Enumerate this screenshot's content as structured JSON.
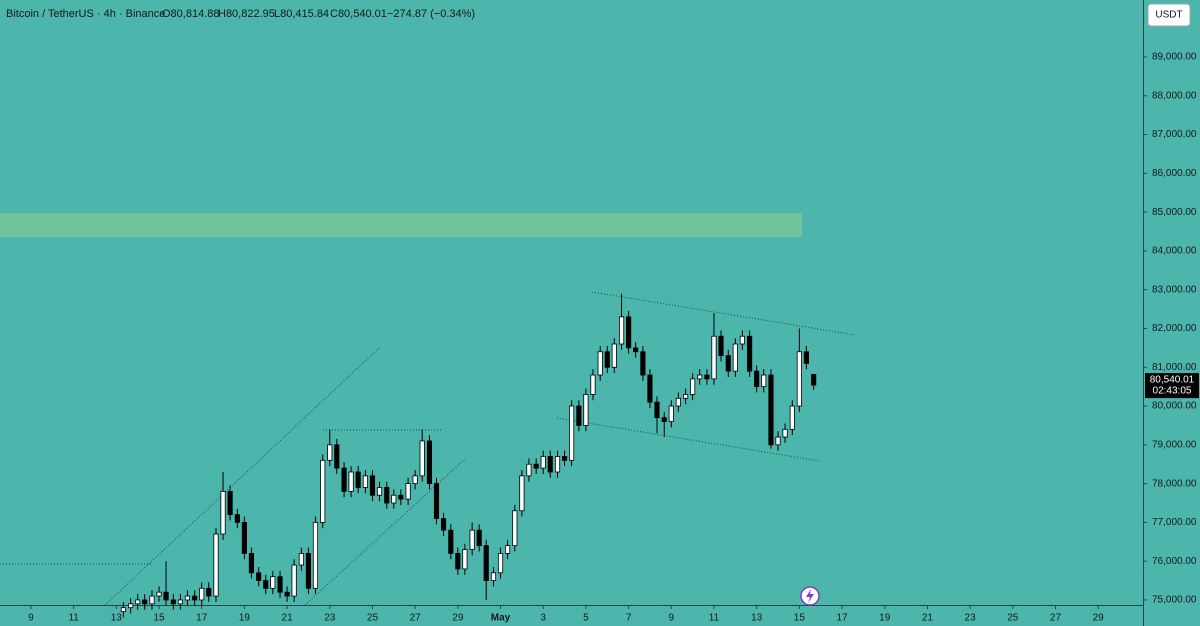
{
  "chart_data": {
    "type": "candlestick",
    "title": "Bitcoin / TetherUS · 4h · Binance",
    "ohlc_labels": [
      "O80,814.88",
      "H80,822.95",
      "L80,415.84",
      "C80,540.01"
    ],
    "change": "−274.87 (−0.34%)",
    "currency": "USDT",
    "price_label": "80,540.01",
    "countdown": "02:43:05",
    "x": [
      13.33,
      13.67,
      14,
      14.33,
      14.67,
      15,
      15.33,
      15.67,
      16,
      16.33,
      16.67,
      17,
      17.33,
      17.67,
      18,
      18.33,
      18.67,
      19,
      19.33,
      19.67,
      20,
      20.33,
      20.67,
      21,
      21.33,
      21.67,
      22,
      22.33,
      22.67,
      23,
      23.33,
      23.67,
      24,
      24.33,
      24.67,
      25,
      25.33,
      25.67,
      26,
      26.33,
      26.67,
      27,
      27.33,
      27.67,
      28,
      28.33,
      28.67,
      29,
      29.33,
      29.67,
      30,
      30.33,
      30.67,
      31,
      31.33,
      31.67,
      32,
      32.33,
      32.67,
      33,
      33.33,
      33.67,
      34,
      34.33,
      34.67,
      35,
      35.33,
      35.67,
      36,
      36.33,
      36.67,
      37,
      37.33,
      37.67,
      38,
      38.33,
      38.67,
      39,
      39.33,
      39.67,
      40,
      40.33,
      40.67,
      41,
      41.33,
      41.67,
      42,
      42.33,
      42.67,
      43,
      43.33,
      43.67,
      44,
      44.33,
      44.67,
      45,
      45.33,
      45.67
    ],
    "open": [
      74700,
      74800,
      74900,
      75000,
      74900,
      75100,
      75200,
      75000,
      74900,
      75000,
      75100,
      75000,
      75300,
      75100,
      76700,
      77800,
      77200,
      77000,
      76200,
      75700,
      75500,
      75300,
      75600,
      75200,
      75100,
      75900,
      76200,
      75300,
      77000,
      78600,
      79000,
      78400,
      77800,
      78300,
      77900,
      78200,
      77700,
      77900,
      77500,
      77700,
      77600,
      78000,
      78200,
      79100,
      78000,
      77100,
      76800,
      76200,
      75800,
      76300,
      76800,
      76400,
      75500,
      75700,
      76200,
      76400,
      77300,
      78200,
      78500,
      78400,
      78700,
      78300,
      78700,
      78600,
      80000,
      79500,
      80300,
      80800,
      81400,
      81000,
      81600,
      82300,
      81500,
      81400,
      80800,
      80100,
      79700,
      79600,
      80000,
      80200,
      80300,
      80700,
      80800,
      80700,
      81800,
      81300,
      80900,
      81600,
      81800,
      80900,
      80500,
      80800,
      79000,
      79200,
      79400,
      80000,
      81400,
      80814.88
    ],
    "high": [
      74950,
      75050,
      75150,
      75150,
      75250,
      75350,
      76000,
      75150,
      75150,
      75250,
      75250,
      75450,
      75450,
      76850,
      78300,
      77950,
      77350,
      77150,
      76350,
      75850,
      75650,
      75750,
      75750,
      75350,
      76050,
      76350,
      76350,
      77150,
      78750,
      79400,
      79150,
      78550,
      78450,
      78450,
      78350,
      78350,
      78050,
      78050,
      77850,
      77850,
      78150,
      78350,
      79400,
      79250,
      78150,
      77250,
      76950,
      76350,
      76450,
      77000,
      76950,
      76550,
      75850,
      76350,
      76550,
      77450,
      78350,
      78650,
      78650,
      78850,
      78850,
      78850,
      78850,
      80150,
      80150,
      80450,
      80950,
      81550,
      81550,
      81750,
      82900,
      82450,
      81650,
      81550,
      80950,
      80250,
      79850,
      80150,
      80350,
      80450,
      80850,
      80950,
      80950,
      82400,
      81950,
      81450,
      81750,
      81950,
      81950,
      81050,
      80950,
      80950,
      79350,
      79550,
      80150,
      82000,
      81550,
      80822.95
    ],
    "low": [
      74550,
      74650,
      74750,
      74750,
      74750,
      74950,
      74850,
      74750,
      74750,
      74850,
      74850,
      74850,
      74950,
      74950,
      76550,
      77050,
      76850,
      76050,
      75550,
      75350,
      75150,
      75150,
      75050,
      74950,
      74950,
      75750,
      75150,
      75150,
      76850,
      78450,
      78250,
      77650,
      77650,
      77750,
      77750,
      77550,
      77550,
      77350,
      77350,
      77450,
      77450,
      77850,
      78050,
      77850,
      76950,
      76650,
      76050,
      75650,
      75650,
      76150,
      76250,
      75000,
      75350,
      75550,
      76050,
      76250,
      77150,
      78050,
      78250,
      78250,
      78150,
      78150,
      78450,
      78450,
      79350,
      79350,
      80150,
      80650,
      80850,
      80850,
      81450,
      81350,
      81250,
      80650,
      79950,
      79300,
      79200,
      79450,
      79850,
      80050,
      80150,
      80550,
      80550,
      80550,
      81150,
      80750,
      80750,
      81450,
      80750,
      80350,
      80350,
      78900,
      78850,
      79050,
      79250,
      79850,
      80950,
      80415.84
    ],
    "close": [
      74800,
      74900,
      75000,
      74900,
      75100,
      75200,
      75000,
      74900,
      75000,
      75100,
      75000,
      75300,
      75100,
      76700,
      77800,
      77200,
      77000,
      76200,
      75700,
      75500,
      75300,
      75600,
      75200,
      75100,
      75900,
      76200,
      75300,
      77000,
      78600,
      79000,
      78400,
      77800,
      78300,
      77900,
      78200,
      77700,
      77900,
      77500,
      77700,
      77600,
      78000,
      78200,
      79100,
      78000,
      77100,
      76800,
      76200,
      75800,
      76300,
      76800,
      76400,
      75500,
      75700,
      76200,
      76400,
      77300,
      78200,
      78500,
      78400,
      78700,
      78300,
      78700,
      78600,
      80000,
      79500,
      80300,
      80800,
      81400,
      81000,
      81600,
      82300,
      81500,
      81400,
      80800,
      80100,
      79700,
      79600,
      80000,
      80200,
      80300,
      80700,
      80800,
      80700,
      81800,
      81300,
      80900,
      81600,
      81800,
      80900,
      80500,
      80800,
      79000,
      79200,
      79400,
      80000,
      81400,
      81100,
      80540.01
    ],
    "up_color": "#ffffff",
    "down_color": "#000000",
    "wick_color": "#000000",
    "xlim": [
      7.55,
      61.1
    ],
    "ylim": [
      74870,
      90470
    ],
    "xticks": [
      9,
      11,
      13,
      15,
      17,
      19,
      21,
      23,
      25,
      27,
      29,
      {
        "value": 31,
        "label": "May"
      },
      {
        "value": 33,
        "label": "3"
      },
      {
        "value": 35,
        "label": "5"
      },
      {
        "value": 37,
        "label": "7"
      },
      {
        "value": 39,
        "label": "9"
      },
      {
        "value": 41,
        "label": "11"
      },
      {
        "value": 43,
        "label": "13"
      },
      {
        "value": 45,
        "label": "15"
      },
      {
        "value": 47,
        "label": "17"
      },
      {
        "value": 49,
        "label": "19"
      },
      {
        "value": 51,
        "label": "21"
      },
      {
        "value": 53,
        "label": "23"
      },
      {
        "value": 55,
        "label": "25"
      },
      {
        "value": 57,
        "label": "27"
      },
      {
        "value": 59,
        "label": "29"
      }
    ],
    "yticks": [
      {
        "value": 75000,
        "label": "75,000.00"
      },
      {
        "value": 76000,
        "label": "76,000.00"
      },
      {
        "value": 77000,
        "label": "77,000.00"
      },
      {
        "value": 78000,
        "label": "78,000.00"
      },
      {
        "value": 79000,
        "label": "79,000.00"
      },
      {
        "value": 80000,
        "label": "80,000.00"
      },
      {
        "value": 81000,
        "label": "81,000.00"
      },
      {
        "value": 82000,
        "label": "82,000.00"
      },
      {
        "value": 83000,
        "label": "83,000.00"
      },
      {
        "value": 84000,
        "label": "84,000.00"
      },
      {
        "value": 85000,
        "label": "85,000.00"
      },
      {
        "value": 86000,
        "label": "86,000.00"
      },
      {
        "value": 87000,
        "label": "87,000.00"
      },
      {
        "value": 88000,
        "label": "88,000.00"
      },
      {
        "value": 89000,
        "label": "89,000.00"
      }
    ]
  }
}
